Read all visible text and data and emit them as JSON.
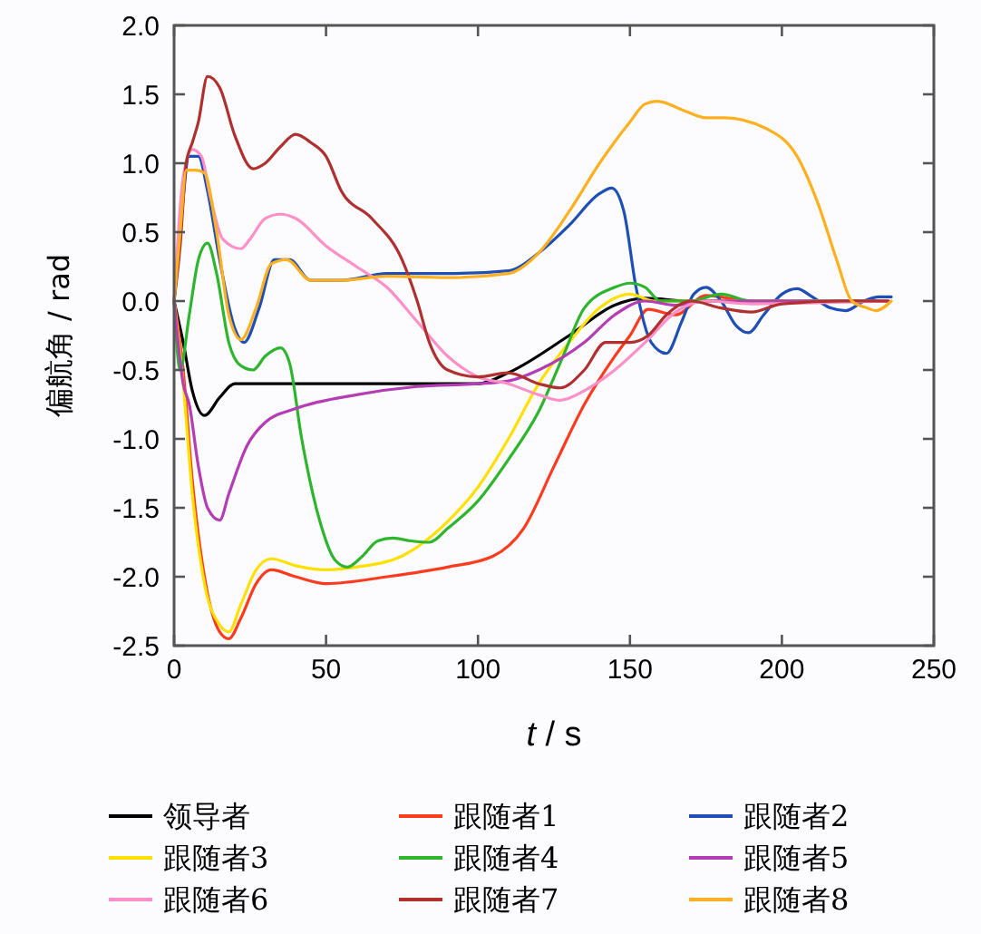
{
  "chart_data": {
    "type": "line",
    "xlabel": "t / s",
    "ylabel": "偏航角 / rad",
    "xlim": [
      0,
      250
    ],
    "ylim": [
      -2.5,
      2.0
    ],
    "xticks": [
      0,
      50,
      100,
      150,
      200,
      250
    ],
    "yticks": [
      {
        "value": -2.5,
        "label": "-2.5"
      },
      {
        "value": -2.0,
        "label": "-2.0"
      },
      {
        "value": -1.5,
        "label": "-1.5"
      },
      {
        "value": -1.0,
        "label": "-1.0"
      },
      {
        "value": -0.5,
        "label": "-0.5"
      },
      {
        "value": 0,
        "label": "0.0"
      },
      {
        "value": 0.5,
        "label": "0.5"
      },
      {
        "value": 1.0,
        "label": "1.0"
      },
      {
        "value": 1.5,
        "label": "1.5"
      },
      {
        "value": 2.0,
        "label": "2.0"
      }
    ],
    "grid": false,
    "legend": "bottom",
    "marker": "none",
    "line_style": "solid",
    "series": [
      {
        "name": "领导者",
        "color": "#000000",
        "x": [
          0,
          3,
          6,
          10,
          15,
          20,
          40,
          100,
          110,
          130,
          145,
          155,
          170,
          235
        ],
        "values": [
          0,
          -0.3,
          -0.65,
          -0.83,
          -0.7,
          -0.6,
          -0.6,
          -0.6,
          -0.52,
          -0.25,
          -0.03,
          0.02,
          0,
          0
        ]
      },
      {
        "name": "跟随者1",
        "color": "#ff3b1f",
        "x": [
          0,
          3,
          6,
          10,
          15,
          18,
          22,
          27,
          32,
          40,
          50,
          70,
          90,
          105,
          115,
          125,
          135,
          145,
          150,
          156,
          165,
          175,
          190,
          235
        ],
        "values": [
          0,
          -0.5,
          -1.3,
          -2.0,
          -2.4,
          -2.45,
          -2.3,
          -2.05,
          -1.95,
          -2.0,
          -2.05,
          -2.0,
          -1.93,
          -1.85,
          -1.65,
          -1.2,
          -0.75,
          -0.4,
          -0.25,
          -0.06,
          -0.1,
          0.04,
          0,
          0
        ]
      },
      {
        "name": "跟随者2",
        "color": "#1f4fb5",
        "x": [
          0,
          2,
          5,
          8,
          11,
          15,
          20,
          23,
          28,
          33,
          38,
          45,
          55,
          70,
          90,
          110,
          120,
          130,
          140,
          144,
          148,
          152,
          157,
          162,
          167,
          171,
          175,
          180,
          185,
          189,
          194,
          200,
          205,
          210,
          216,
          221,
          227,
          232,
          236
        ],
        "values": [
          0,
          0.5,
          1.05,
          1.05,
          0.8,
          0.3,
          -0.2,
          -0.3,
          -0.05,
          0.3,
          0.3,
          0.15,
          0.15,
          0.2,
          0.2,
          0.22,
          0.35,
          0.55,
          0.78,
          0.82,
          0.65,
          0.1,
          -0.3,
          -0.38,
          -0.15,
          0.05,
          0.1,
          0.0,
          -0.18,
          -0.23,
          -0.1,
          0.05,
          0.09,
          0.03,
          -0.05,
          -0.07,
          0.0,
          0.03,
          0.03
        ]
      },
      {
        "name": "跟随者3",
        "color": "#ffe000",
        "x": [
          0,
          3,
          6,
          10,
          15,
          18,
          22,
          27,
          32,
          40,
          50,
          60,
          75,
          90,
          100,
          110,
          120,
          130,
          140,
          150,
          158,
          170,
          235
        ],
        "values": [
          0,
          -0.6,
          -1.4,
          -2.05,
          -2.35,
          -2.4,
          -2.2,
          -1.95,
          -1.87,
          -1.92,
          -1.95,
          -1.93,
          -1.85,
          -1.6,
          -1.35,
          -1.0,
          -0.6,
          -0.3,
          -0.05,
          0.05,
          0,
          0,
          0
        ]
      },
      {
        "name": "跟随者4",
        "color": "#2db52d",
        "x": [
          0,
          2,
          5,
          8,
          11,
          14,
          18,
          22,
          26,
          30,
          35,
          38,
          42,
          48,
          53,
          57,
          62,
          67,
          72,
          78,
          84,
          90,
          100,
          110,
          120,
          128,
          135,
          145,
          150,
          155,
          160,
          170,
          180,
          190,
          200,
          235
        ],
        "values": [
          0,
          -0.5,
          -0.1,
          0.3,
          0.42,
          0.2,
          -0.3,
          -0.47,
          -0.5,
          -0.4,
          -0.34,
          -0.45,
          -1.0,
          -1.6,
          -1.88,
          -1.93,
          -1.85,
          -1.74,
          -1.72,
          -1.74,
          -1.75,
          -1.65,
          -1.45,
          -1.15,
          -0.8,
          -0.4,
          -0.05,
          0.1,
          0.13,
          0.1,
          0.0,
          0.0,
          0.05,
          0.0,
          0.0,
          0.0
        ]
      },
      {
        "name": "跟随者5",
        "color": "#b43cb4",
        "x": [
          0,
          3,
          5,
          8,
          11,
          15,
          18,
          24,
          30,
          40,
          60,
          80,
          100,
          110,
          120,
          135,
          145,
          155,
          165,
          175,
          235
        ],
        "values": [
          0,
          -0.6,
          -0.75,
          -1.2,
          -1.5,
          -1.59,
          -1.4,
          -1.05,
          -0.88,
          -0.78,
          -0.68,
          -0.62,
          -0.6,
          -0.58,
          -0.5,
          -0.3,
          -0.1,
          0.0,
          -0.03,
          0.0,
          0
        ]
      },
      {
        "name": "跟随者6",
        "color": "#ff8fc8",
        "x": [
          0,
          3,
          6,
          9,
          12,
          16,
          22,
          25,
          30,
          35,
          40,
          50,
          60,
          70,
          80,
          90,
          100,
          110,
          120,
          127,
          135,
          145,
          155,
          165,
          175,
          190,
          235
        ],
        "values": [
          0,
          0.9,
          1.1,
          1.05,
          0.75,
          0.45,
          0.38,
          0.45,
          0.6,
          0.63,
          0.6,
          0.4,
          0.25,
          0.1,
          -0.15,
          -0.4,
          -0.55,
          -0.6,
          -0.68,
          -0.72,
          -0.65,
          -0.5,
          -0.3,
          -0.08,
          0.0,
          -0.02,
          0
        ]
      },
      {
        "name": "跟随者7",
        "color": "#b03030",
        "x": [
          0,
          2,
          4,
          6,
          8,
          11,
          15,
          20,
          26,
          30,
          35,
          40,
          45,
          50,
          55,
          65,
          75,
          80,
          84,
          90,
          100,
          110,
          120,
          127,
          135,
          142,
          150,
          156,
          162,
          170,
          180,
          190,
          200,
          220,
          235
        ],
        "values": [
          0,
          0.4,
          1.0,
          1.15,
          1.3,
          1.63,
          1.55,
          1.2,
          0.96,
          1.0,
          1.12,
          1.21,
          1.15,
          1.05,
          0.8,
          0.6,
          0.3,
          0.0,
          -0.3,
          -0.5,
          -0.55,
          -0.52,
          -0.6,
          -0.63,
          -0.5,
          -0.3,
          -0.3,
          -0.25,
          -0.1,
          0.0,
          -0.05,
          -0.08,
          -0.02,
          0.0,
          0.0
        ]
      },
      {
        "name": "跟随者8",
        "color": "#ffb020",
        "x": [
          0,
          2,
          4,
          7,
          10,
          14,
          18,
          22,
          27,
          32,
          37,
          45,
          55,
          70,
          90,
          110,
          120,
          130,
          140,
          150,
          155,
          159,
          168,
          175,
          181,
          195,
          205,
          212,
          218,
          223,
          228,
          231,
          236
        ],
        "values": [
          0,
          0.5,
          0.95,
          0.95,
          0.93,
          0.5,
          -0.1,
          -0.28,
          -0.05,
          0.27,
          0.3,
          0.15,
          0.15,
          0.18,
          0.17,
          0.2,
          0.35,
          0.65,
          1.0,
          1.3,
          1.43,
          1.45,
          1.38,
          1.33,
          1.33,
          1.25,
          1.05,
          0.7,
          0.3,
          0.0,
          -0.05,
          -0.07,
          0.0
        ]
      }
    ]
  }
}
